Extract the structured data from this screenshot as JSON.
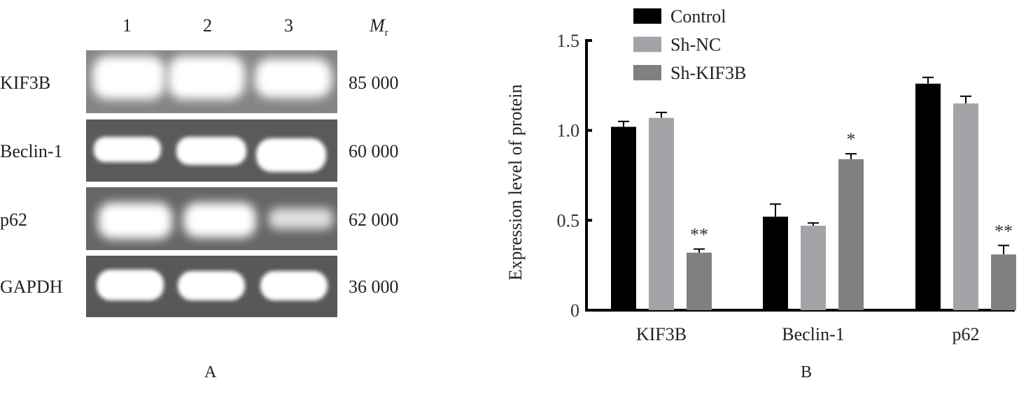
{
  "panel_a": {
    "label": "A",
    "lanes": [
      "1",
      "2",
      "3"
    ],
    "mr_header": "M",
    "mr_sub": "r",
    "rows": [
      {
        "protein": "KIF3B",
        "mr": "85 000"
      },
      {
        "protein": "Beclin-1",
        "mr": "60 000"
      },
      {
        "protein": "p62",
        "mr": "62 000"
      },
      {
        "protein": "GAPDH",
        "mr": "36 000"
      }
    ]
  },
  "panel_b": {
    "label": "B"
  },
  "chart_data": {
    "type": "bar",
    "title": "",
    "xlabel": "",
    "ylabel": "Expression level of protein",
    "ylim": [
      0,
      1.5
    ],
    "yticks": [
      "0",
      "0.5",
      "1.0",
      "1.5"
    ],
    "ytick_values": [
      0,
      0.5,
      1.0,
      1.5
    ],
    "categories": [
      "KIF3B",
      "Beclin-1",
      "p62"
    ],
    "legend_position": "top-left",
    "grid": false,
    "series": [
      {
        "name": "Control",
        "color": "#000000",
        "values": [
          1.02,
          0.52,
          1.26
        ],
        "errors": [
          0.03,
          0.07,
          0.035
        ],
        "annotations": [
          "",
          "",
          ""
        ]
      },
      {
        "name": "Sh-NC",
        "color": "#a4a4a8",
        "values": [
          1.07,
          0.47,
          1.15
        ],
        "errors": [
          0.03,
          0.015,
          0.04
        ],
        "annotations": [
          "",
          "",
          ""
        ]
      },
      {
        "name": "Sh-KIF3B",
        "color": "#808080",
        "values": [
          0.32,
          0.84,
          0.31
        ],
        "errors": [
          0.02,
          0.03,
          0.05
        ],
        "annotations": [
          "**",
          "*",
          "**"
        ]
      }
    ]
  }
}
